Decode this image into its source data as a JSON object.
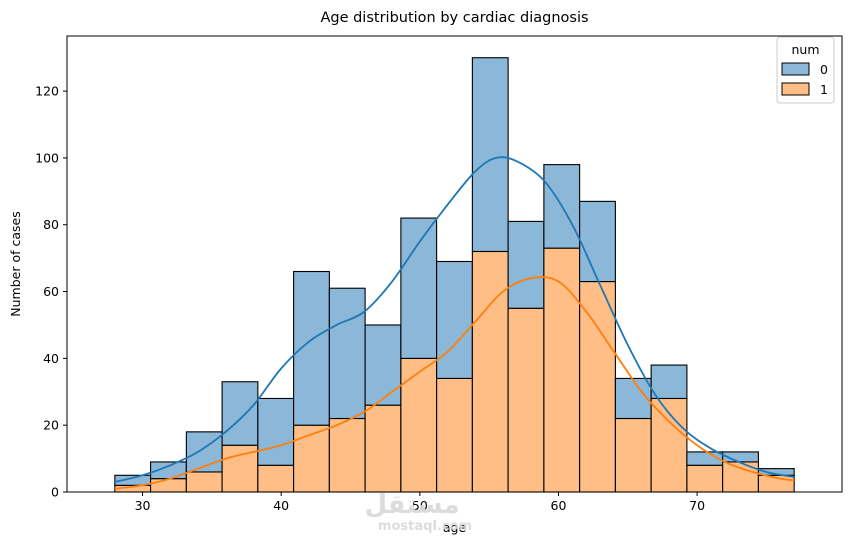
{
  "chart_data": {
    "type": "histogram",
    "title": "Age distribution by cardiac diagnosis",
    "xlabel": "age",
    "ylabel": "Number of cases",
    "xlim": [
      24.55,
      80.45
    ],
    "ylim": [
      0,
      136.5
    ],
    "x_ticks": [
      30,
      40,
      50,
      60,
      70
    ],
    "y_ticks": [
      0,
      20,
      40,
      60,
      80,
      100,
      120
    ],
    "stacked": true,
    "bin_edges": [
      28,
      30.579,
      33.158,
      35.737,
      38.316,
      40.895,
      43.474,
      46.053,
      48.632,
      51.211,
      53.789,
      56.368,
      58.947,
      61.526,
      64.105,
      66.684,
      69.263,
      71.842,
      74.421,
      77
    ],
    "series": [
      {
        "name": "0",
        "values": [
          3,
          5,
          12,
          19,
          20,
          46,
          39,
          24,
          42,
          35,
          58,
          26,
          25,
          24,
          12,
          10,
          4,
          3,
          2
        ]
      },
      {
        "name": "1",
        "values": [
          2,
          4,
          6,
          14,
          8,
          20,
          22,
          26,
          40,
          34,
          72,
          55,
          73,
          63,
          22,
          28,
          8,
          9,
          5
        ]
      }
    ],
    "kde": [
      {
        "name": "0",
        "points": [
          [
            28,
            3
          ],
          [
            30,
            5
          ],
          [
            32,
            8
          ],
          [
            34,
            12
          ],
          [
            36,
            18
          ],
          [
            38,
            26
          ],
          [
            40,
            37
          ],
          [
            42,
            45
          ],
          [
            44,
            50
          ],
          [
            46,
            54
          ],
          [
            48,
            63
          ],
          [
            50,
            75
          ],
          [
            52,
            86
          ],
          [
            54,
            96
          ],
          [
            55.5,
            100
          ],
          [
            57,
            99
          ],
          [
            59,
            93
          ],
          [
            61,
            80
          ],
          [
            63,
            62
          ],
          [
            65,
            44
          ],
          [
            67,
            29
          ],
          [
            69,
            19
          ],
          [
            71,
            13
          ],
          [
            73,
            9
          ],
          [
            75,
            6
          ],
          [
            77,
            4.5
          ]
        ]
      },
      {
        "name": "1",
        "points": [
          [
            28,
            1
          ],
          [
            30,
            2
          ],
          [
            32,
            4
          ],
          [
            34,
            7
          ],
          [
            36,
            10
          ],
          [
            38,
            12
          ],
          [
            40,
            14
          ],
          [
            42,
            17
          ],
          [
            44,
            20
          ],
          [
            46,
            24
          ],
          [
            48,
            30
          ],
          [
            50,
            36
          ],
          [
            52,
            42
          ],
          [
            54,
            51
          ],
          [
            56,
            60
          ],
          [
            58,
            64
          ],
          [
            60,
            63
          ],
          [
            62,
            54
          ],
          [
            64,
            42
          ],
          [
            66,
            30
          ],
          [
            68,
            21
          ],
          [
            70,
            14
          ],
          [
            72,
            9
          ],
          [
            74,
            6
          ],
          [
            76,
            4
          ],
          [
            77,
            3.5
          ]
        ]
      }
    ],
    "legend": {
      "title": "num",
      "placement": "top-right"
    },
    "grid": false,
    "colors": {
      "0": {
        "fill": "#8bb7d8",
        "line": "#1f77b4"
      },
      "1": {
        "fill": "#ffbe86",
        "line": "#ff7f0e"
      },
      "edge": "#000000"
    }
  },
  "watermark": {
    "main": "مستقل",
    "sub": "mostaql.com"
  }
}
